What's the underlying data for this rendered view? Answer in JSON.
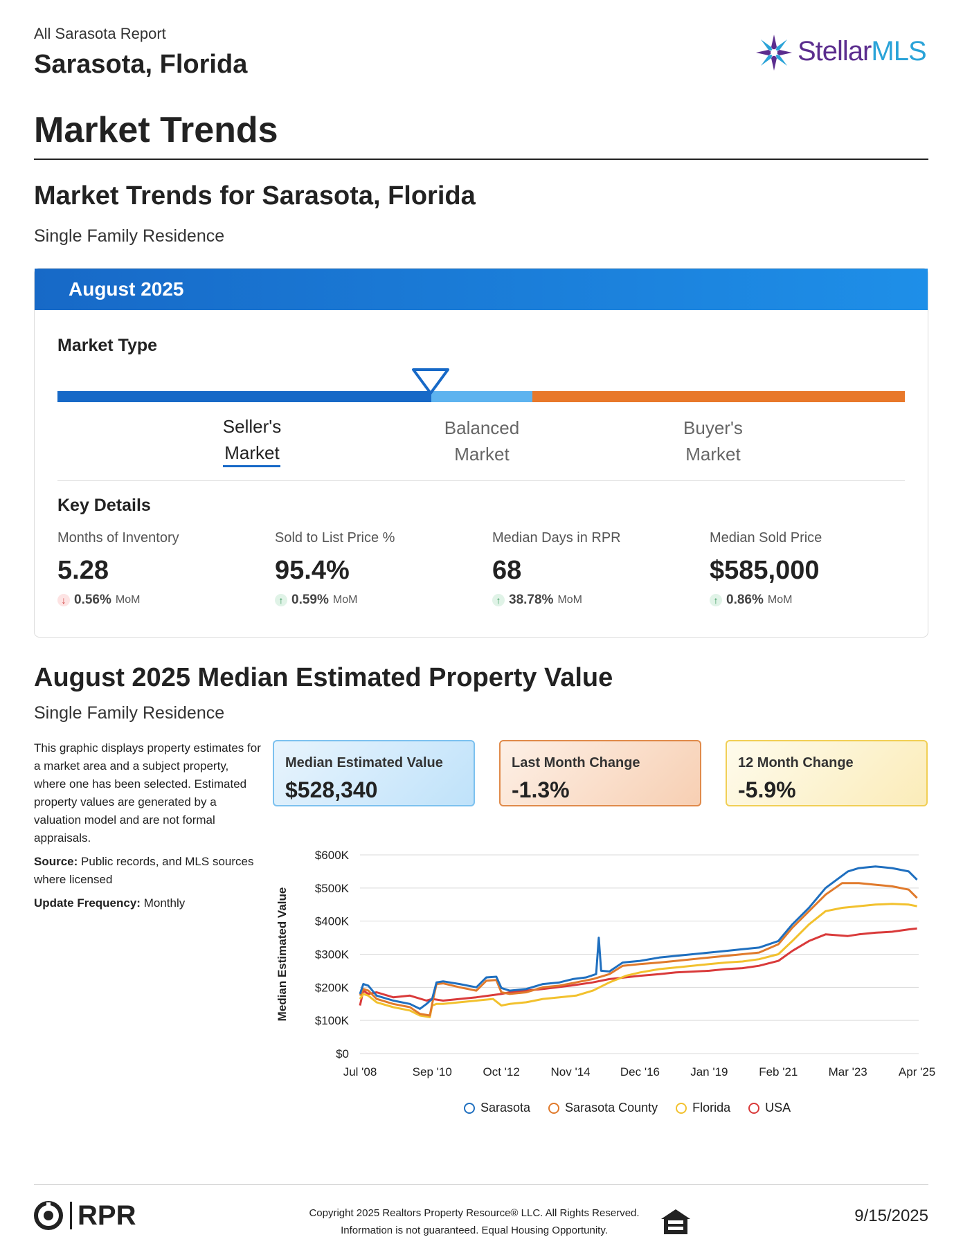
{
  "header": {
    "report_name": "All Sarasota Report",
    "location": "Sarasota, Florida",
    "logo_text": "Stellar",
    "logo_text_accent": "MLS"
  },
  "page_title": "Market Trends",
  "section1": {
    "title": "Market Trends for Sarasota, Florida",
    "subtitle": "Single Family Residence",
    "card_header": "August 2025",
    "market_type_title": "Market Type",
    "market_labels": {
      "seller_line1": "Seller's",
      "seller_line2": "Market",
      "balanced_line1": "Balanced",
      "balanced_line2": "Market",
      "buyer_line1": "Buyer's",
      "buyer_line2": "Market"
    },
    "key_details_title": "Key Details",
    "stats": [
      {
        "label": "Months of Inventory",
        "value": "5.28",
        "change": "0.56%",
        "period": "MoM",
        "direction": "down"
      },
      {
        "label": "Sold to List Price %",
        "value": "95.4%",
        "change": "0.59%",
        "period": "MoM",
        "direction": "up"
      },
      {
        "label": "Median Days in RPR",
        "value": "68",
        "change": "38.78%",
        "period": "MoM",
        "direction": "up"
      },
      {
        "label": "Median Sold Price",
        "value": "$585,000",
        "change": "0.86%",
        "period": "MoM",
        "direction": "up"
      }
    ]
  },
  "section2": {
    "title": "August 2025 Median Estimated Property Value",
    "subtitle": "Single Family Residence",
    "description": "This graphic displays property estimates for a market area and a subject property, where one has been selected. Estimated property values are generated by a valuation model and are not formal appraisals.",
    "source_label": "Source:",
    "source_text": " Public records, and MLS sources where licensed",
    "frequency_label": "Update Frequency:",
    "frequency_text": " Monthly",
    "metrics": [
      {
        "label": "Median Estimated Value",
        "value": "$528,340"
      },
      {
        "label": "Last Month Change",
        "value": "-1.3%"
      },
      {
        "label": "12 Month Change",
        "value": "-5.9%"
      }
    ]
  },
  "chart_data": {
    "type": "line",
    "ylabel": "Median Estimated Value",
    "ylim": [
      0,
      600000
    ],
    "yticks": [
      "$0",
      "$100K",
      "$200K",
      "$300K",
      "$400K",
      "$500K",
      "$600K"
    ],
    "xlim": [
      2008.5,
      2025.3
    ],
    "x_tick_labels": [
      "Jul '08",
      "Sep '10",
      "Oct '12",
      "Nov '14",
      "Dec '16",
      "Jan '19",
      "Feb '21",
      "Mar '23",
      "Apr '25"
    ],
    "x_tick_positions": [
      2008.5,
      2010.67,
      2012.75,
      2014.83,
      2016.92,
      2019.0,
      2021.08,
      2023.17,
      2025.25
    ],
    "legend_position": "bottom",
    "series": [
      {
        "name": "Sarasota",
        "color": "#1f6fbf",
        "points": [
          [
            2008.5,
            180000
          ],
          [
            2008.6,
            210000
          ],
          [
            2008.75,
            205000
          ],
          [
            2009.0,
            175000
          ],
          [
            2009.5,
            160000
          ],
          [
            2010.0,
            150000
          ],
          [
            2010.3,
            135000
          ],
          [
            2010.5,
            150000
          ],
          [
            2010.67,
            165000
          ],
          [
            2010.8,
            215000
          ],
          [
            2011.0,
            218000
          ],
          [
            2011.5,
            210000
          ],
          [
            2012.0,
            200000
          ],
          [
            2012.3,
            230000
          ],
          [
            2012.6,
            232000
          ],
          [
            2012.75,
            198000
          ],
          [
            2013.0,
            190000
          ],
          [
            2013.5,
            195000
          ],
          [
            2014.0,
            210000
          ],
          [
            2014.5,
            215000
          ],
          [
            2014.9,
            225000
          ],
          [
            2015.3,
            230000
          ],
          [
            2015.6,
            240000
          ],
          [
            2015.68,
            350000
          ],
          [
            2015.75,
            250000
          ],
          [
            2016.0,
            248000
          ],
          [
            2016.4,
            275000
          ],
          [
            2016.92,
            280000
          ],
          [
            2017.5,
            290000
          ],
          [
            2018.0,
            295000
          ],
          [
            2019.0,
            305000
          ],
          [
            2019.5,
            310000
          ],
          [
            2020.0,
            315000
          ],
          [
            2020.5,
            320000
          ],
          [
            2021.08,
            340000
          ],
          [
            2021.5,
            390000
          ],
          [
            2022.0,
            440000
          ],
          [
            2022.5,
            500000
          ],
          [
            2023.17,
            550000
          ],
          [
            2023.5,
            560000
          ],
          [
            2024.0,
            565000
          ],
          [
            2024.5,
            560000
          ],
          [
            2025.0,
            550000
          ],
          [
            2025.25,
            525000
          ]
        ]
      },
      {
        "name": "Sarasota County",
        "color": "#e07a2c",
        "points": [
          [
            2008.5,
            175000
          ],
          [
            2008.6,
            195000
          ],
          [
            2008.75,
            190000
          ],
          [
            2009.0,
            165000
          ],
          [
            2009.5,
            150000
          ],
          [
            2010.0,
            140000
          ],
          [
            2010.3,
            120000
          ],
          [
            2010.6,
            115000
          ],
          [
            2010.67,
            150000
          ],
          [
            2010.8,
            210000
          ],
          [
            2011.0,
            212000
          ],
          [
            2011.5,
            200000
          ],
          [
            2012.0,
            190000
          ],
          [
            2012.3,
            220000
          ],
          [
            2012.6,
            222000
          ],
          [
            2012.75,
            185000
          ],
          [
            2013.0,
            180000
          ],
          [
            2013.5,
            185000
          ],
          [
            2014.0,
            200000
          ],
          [
            2014.5,
            205000
          ],
          [
            2015.0,
            215000
          ],
          [
            2015.5,
            225000
          ],
          [
            2016.0,
            240000
          ],
          [
            2016.4,
            265000
          ],
          [
            2016.92,
            270000
          ],
          [
            2017.5,
            275000
          ],
          [
            2018.0,
            280000
          ],
          [
            2019.0,
            290000
          ],
          [
            2019.5,
            295000
          ],
          [
            2020.0,
            300000
          ],
          [
            2020.5,
            305000
          ],
          [
            2021.08,
            330000
          ],
          [
            2021.5,
            380000
          ],
          [
            2022.0,
            430000
          ],
          [
            2022.5,
            480000
          ],
          [
            2023.0,
            515000
          ],
          [
            2023.5,
            515000
          ],
          [
            2024.0,
            510000
          ],
          [
            2024.5,
            505000
          ],
          [
            2025.0,
            495000
          ],
          [
            2025.25,
            470000
          ]
        ]
      },
      {
        "name": "Florida",
        "color": "#f2c12e",
        "points": [
          [
            2008.5,
            165000
          ],
          [
            2008.6,
            180000
          ],
          [
            2008.75,
            175000
          ],
          [
            2009.0,
            155000
          ],
          [
            2009.5,
            140000
          ],
          [
            2010.0,
            130000
          ],
          [
            2010.3,
            115000
          ],
          [
            2010.6,
            110000
          ],
          [
            2010.67,
            145000
          ],
          [
            2010.8,
            150000
          ],
          [
            2011.0,
            150000
          ],
          [
            2011.5,
            155000
          ],
          [
            2012.0,
            160000
          ],
          [
            2012.5,
            165000
          ],
          [
            2012.75,
            145000
          ],
          [
            2013.0,
            150000
          ],
          [
            2013.5,
            155000
          ],
          [
            2014.0,
            165000
          ],
          [
            2014.5,
            170000
          ],
          [
            2015.0,
            175000
          ],
          [
            2015.5,
            190000
          ],
          [
            2016.0,
            215000
          ],
          [
            2016.5,
            235000
          ],
          [
            2016.92,
            245000
          ],
          [
            2017.5,
            255000
          ],
          [
            2018.0,
            260000
          ],
          [
            2019.0,
            270000
          ],
          [
            2019.5,
            275000
          ],
          [
            2020.0,
            278000
          ],
          [
            2020.5,
            285000
          ],
          [
            2021.08,
            300000
          ],
          [
            2021.5,
            340000
          ],
          [
            2022.0,
            390000
          ],
          [
            2022.5,
            430000
          ],
          [
            2023.0,
            440000
          ],
          [
            2023.5,
            445000
          ],
          [
            2024.0,
            450000
          ],
          [
            2024.5,
            452000
          ],
          [
            2025.0,
            450000
          ],
          [
            2025.25,
            445000
          ]
        ]
      },
      {
        "name": "USA",
        "color": "#d93a3a",
        "points": [
          [
            2008.5,
            145000
          ],
          [
            2008.6,
            190000
          ],
          [
            2008.75,
            180000
          ],
          [
            2009.0,
            185000
          ],
          [
            2009.5,
            170000
          ],
          [
            2010.0,
            175000
          ],
          [
            2010.5,
            160000
          ],
          [
            2010.67,
            165000
          ],
          [
            2011.0,
            160000
          ],
          [
            2011.5,
            165000
          ],
          [
            2012.0,
            170000
          ],
          [
            2012.75,
            180000
          ],
          [
            2013.0,
            185000
          ],
          [
            2013.5,
            190000
          ],
          [
            2014.0,
            195000
          ],
          [
            2014.83,
            205000
          ],
          [
            2015.5,
            215000
          ],
          [
            2016.0,
            225000
          ],
          [
            2016.92,
            235000
          ],
          [
            2017.5,
            240000
          ],
          [
            2018.0,
            245000
          ],
          [
            2019.0,
            250000
          ],
          [
            2019.5,
            255000
          ],
          [
            2020.0,
            258000
          ],
          [
            2020.5,
            265000
          ],
          [
            2021.08,
            280000
          ],
          [
            2021.5,
            310000
          ],
          [
            2022.0,
            340000
          ],
          [
            2022.5,
            360000
          ],
          [
            2023.17,
            355000
          ],
          [
            2023.5,
            360000
          ],
          [
            2024.0,
            365000
          ],
          [
            2024.5,
            368000
          ],
          [
            2025.0,
            375000
          ],
          [
            2025.25,
            378000
          ]
        ]
      }
    ]
  },
  "footer": {
    "brand": "RPR",
    "copyright_line1": "Copyright 2025 Realtors Property Resource® LLC. All Rights Reserved.",
    "copyright_line2": "Information is not guaranteed. Equal Housing Opportunity.",
    "date": "9/15/2025"
  }
}
